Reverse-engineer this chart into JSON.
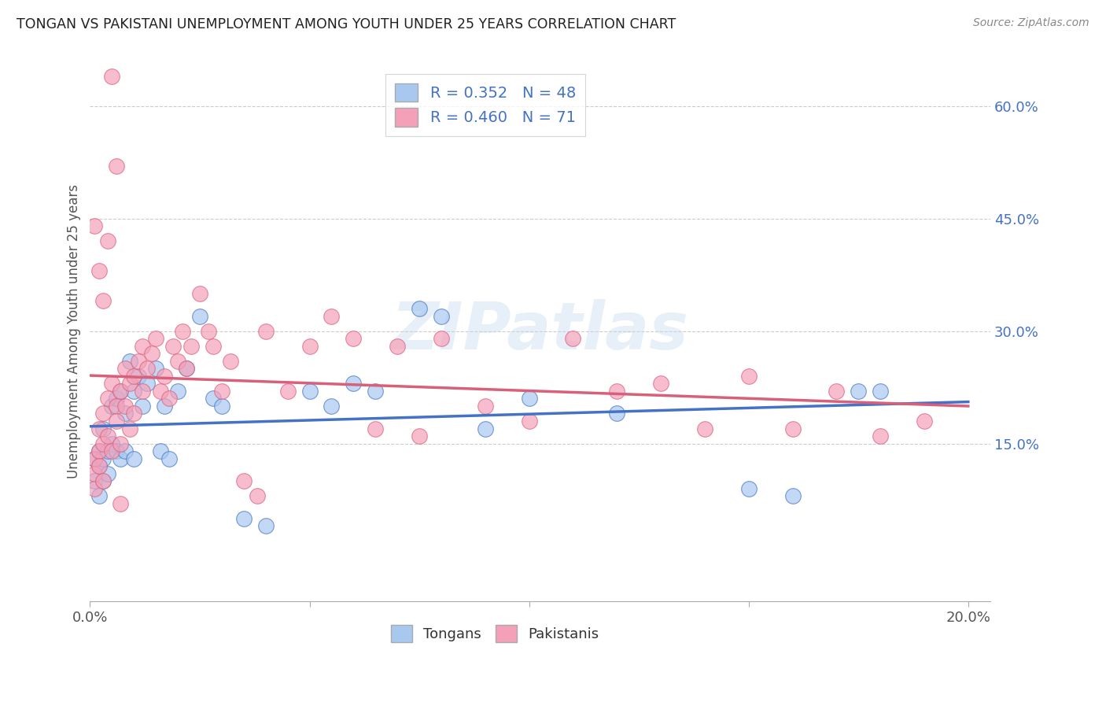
{
  "title": "TONGAN VS PAKISTANI UNEMPLOYMENT AMONG YOUTH UNDER 25 YEARS CORRELATION CHART",
  "source": "Source: ZipAtlas.com",
  "ylabel": "Unemployment Among Youth under 25 years",
  "xlim": [
    0.0,
    0.205
  ],
  "ylim": [
    -0.06,
    0.66
  ],
  "xticks": [
    0.0,
    0.05,
    0.1,
    0.15,
    0.2
  ],
  "xtick_labels": [
    "0.0%",
    "",
    "",
    "",
    "20.0%"
  ],
  "ytick_right_vals": [
    0.6,
    0.45,
    0.3,
    0.15
  ],
  "ytick_right_labels": [
    "60.0%",
    "45.0%",
    "30.0%",
    "15.0%"
  ],
  "tongan_R": 0.352,
  "tongan_N": 48,
  "pakistani_R": 0.46,
  "pakistani_N": 71,
  "tongan_color": "#a8c8f0",
  "pakistani_color": "#f4a0b8",
  "tongan_line_color": "#4472c4",
  "pakistani_line_color": "#d9607a",
  "watermark": "ZIPatlas",
  "background_color": "#ffffff",
  "grid_color": "#cccccc",
  "legend_text_color": "#4472c4",
  "tongan_x": [
    0.001,
    0.001,
    0.002,
    0.002,
    0.002,
    0.003,
    0.003,
    0.003,
    0.004,
    0.004,
    0.005,
    0.005,
    0.006,
    0.006,
    0.007,
    0.007,
    0.008,
    0.008,
    0.009,
    0.01,
    0.01,
    0.011,
    0.012,
    0.013,
    0.015,
    0.016,
    0.017,
    0.018,
    0.02,
    0.022,
    0.025,
    0.028,
    0.03,
    0.035,
    0.04,
    0.05,
    0.055,
    0.06,
    0.065,
    0.075,
    0.08,
    0.09,
    0.1,
    0.12,
    0.15,
    0.16,
    0.175,
    0.18
  ],
  "tongan_y": [
    0.13,
    0.1,
    0.14,
    0.12,
    0.08,
    0.13,
    0.17,
    0.1,
    0.14,
    0.11,
    0.2,
    0.15,
    0.14,
    0.21,
    0.13,
    0.22,
    0.19,
    0.14,
    0.26,
    0.13,
    0.22,
    0.24,
    0.2,
    0.23,
    0.25,
    0.14,
    0.2,
    0.13,
    0.22,
    0.25,
    0.32,
    0.21,
    0.2,
    0.05,
    0.04,
    0.22,
    0.2,
    0.23,
    0.22,
    0.33,
    0.32,
    0.17,
    0.21,
    0.19,
    0.09,
    0.08,
    0.22,
    0.22
  ],
  "pakistani_x": [
    0.001,
    0.001,
    0.001,
    0.002,
    0.002,
    0.002,
    0.003,
    0.003,
    0.003,
    0.004,
    0.004,
    0.005,
    0.005,
    0.006,
    0.006,
    0.007,
    0.007,
    0.008,
    0.008,
    0.009,
    0.009,
    0.01,
    0.01,
    0.011,
    0.012,
    0.012,
    0.013,
    0.014,
    0.015,
    0.016,
    0.017,
    0.018,
    0.019,
    0.02,
    0.021,
    0.022,
    0.023,
    0.025,
    0.027,
    0.028,
    0.03,
    0.032,
    0.035,
    0.038,
    0.04,
    0.045,
    0.05,
    0.055,
    0.06,
    0.065,
    0.07,
    0.075,
    0.08,
    0.09,
    0.1,
    0.11,
    0.12,
    0.13,
    0.14,
    0.15,
    0.16,
    0.17,
    0.18,
    0.19,
    0.001,
    0.002,
    0.003,
    0.004,
    0.005,
    0.006,
    0.007
  ],
  "pakistani_y": [
    0.13,
    0.11,
    0.09,
    0.14,
    0.17,
    0.12,
    0.15,
    0.19,
    0.1,
    0.16,
    0.21,
    0.14,
    0.23,
    0.2,
    0.18,
    0.22,
    0.15,
    0.25,
    0.2,
    0.23,
    0.17,
    0.24,
    0.19,
    0.26,
    0.22,
    0.28,
    0.25,
    0.27,
    0.29,
    0.22,
    0.24,
    0.21,
    0.28,
    0.26,
    0.3,
    0.25,
    0.28,
    0.35,
    0.3,
    0.28,
    0.22,
    0.26,
    0.1,
    0.08,
    0.3,
    0.22,
    0.28,
    0.32,
    0.29,
    0.17,
    0.28,
    0.16,
    0.29,
    0.2,
    0.18,
    0.29,
    0.22,
    0.23,
    0.17,
    0.24,
    0.17,
    0.22,
    0.16,
    0.18,
    0.44,
    0.38,
    0.34,
    0.42,
    0.64,
    0.52,
    0.07
  ]
}
